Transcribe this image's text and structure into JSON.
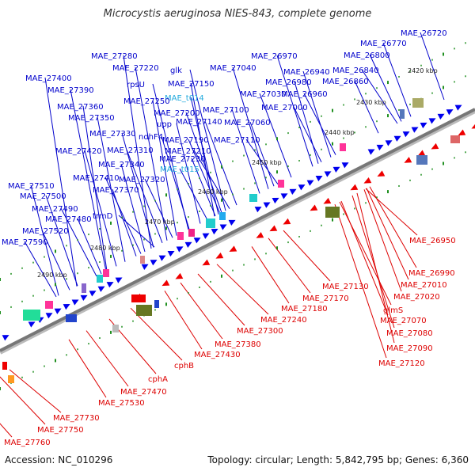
{
  "title": "Microcystis aeruginosa NIES-843, complete genome",
  "footer": {
    "accession": "Accession: NC_010296",
    "summary": "Topology: circular; Length: 5,842,795 bp; Genes: 6,360"
  },
  "colors": {
    "forward_label": "#0000cc",
    "reverse_label": "#dd0000",
    "trna_label": "#22aadd",
    "backbone": "#777777",
    "tick": "#1f8f1f"
  },
  "kbp_ticks": [
    "2420 kbp",
    "2430 kbp",
    "2440 kbp",
    "2450 kbp",
    "2460 kbp",
    "2470 kbp",
    "2480 kbp",
    "2490 kbp"
  ],
  "top_labels": [
    "MAE_26720",
    "MAE_26770",
    "MAE_26800",
    "MAE_26840",
    "MAE_26860",
    "MAE_26940",
    "MAE_26960",
    "MAE_26970",
    "MAE_26980",
    "MAE_27000",
    "MAE_27030",
    "MAE_27040",
    "MAE_27060",
    "MAE_27100",
    "MAE_27110",
    "glk",
    "MAE_27150",
    "MAE_t014",
    "MAE_27140",
    "MAE_27200",
    "upp",
    "ndhF4",
    "MAE_27190",
    "MAE_27210",
    "MAE_27230",
    "MAE_t015",
    "MAE_27220",
    "rpsU",
    "MAE_27250",
    "MAE_27280",
    "MAE_27400",
    "MAE_27390",
    "MAE_27360",
    "MAE_27350",
    "MAE_27330",
    "MAE_27310",
    "MAE_27340",
    "MAE_27320",
    "MAE_27420",
    "MAE_27410",
    "MAE_27370",
    "MAE_27510",
    "MAE_27500",
    "MAE_27490",
    "MAE_27480",
    "MAE_27520",
    "MAE_27590",
    "trmD"
  ],
  "bottom_labels": [
    "MAE_26950",
    "MAE_26990",
    "MAE_27010",
    "MAE_27020",
    "glmS",
    "MAE_27070",
    "MAE_27080",
    "MAE_27090",
    "MAE_27120",
    "MAE_27130",
    "MAE_27170",
    "MAE_27180",
    "MAE_27240",
    "MAE_27300",
    "MAE_27380",
    "MAE_27430",
    "cphB",
    "cphA",
    "MAE_27470",
    "MAE_27530",
    "MAE_27730",
    "MAE_27750",
    "MAE_27760"
  ]
}
